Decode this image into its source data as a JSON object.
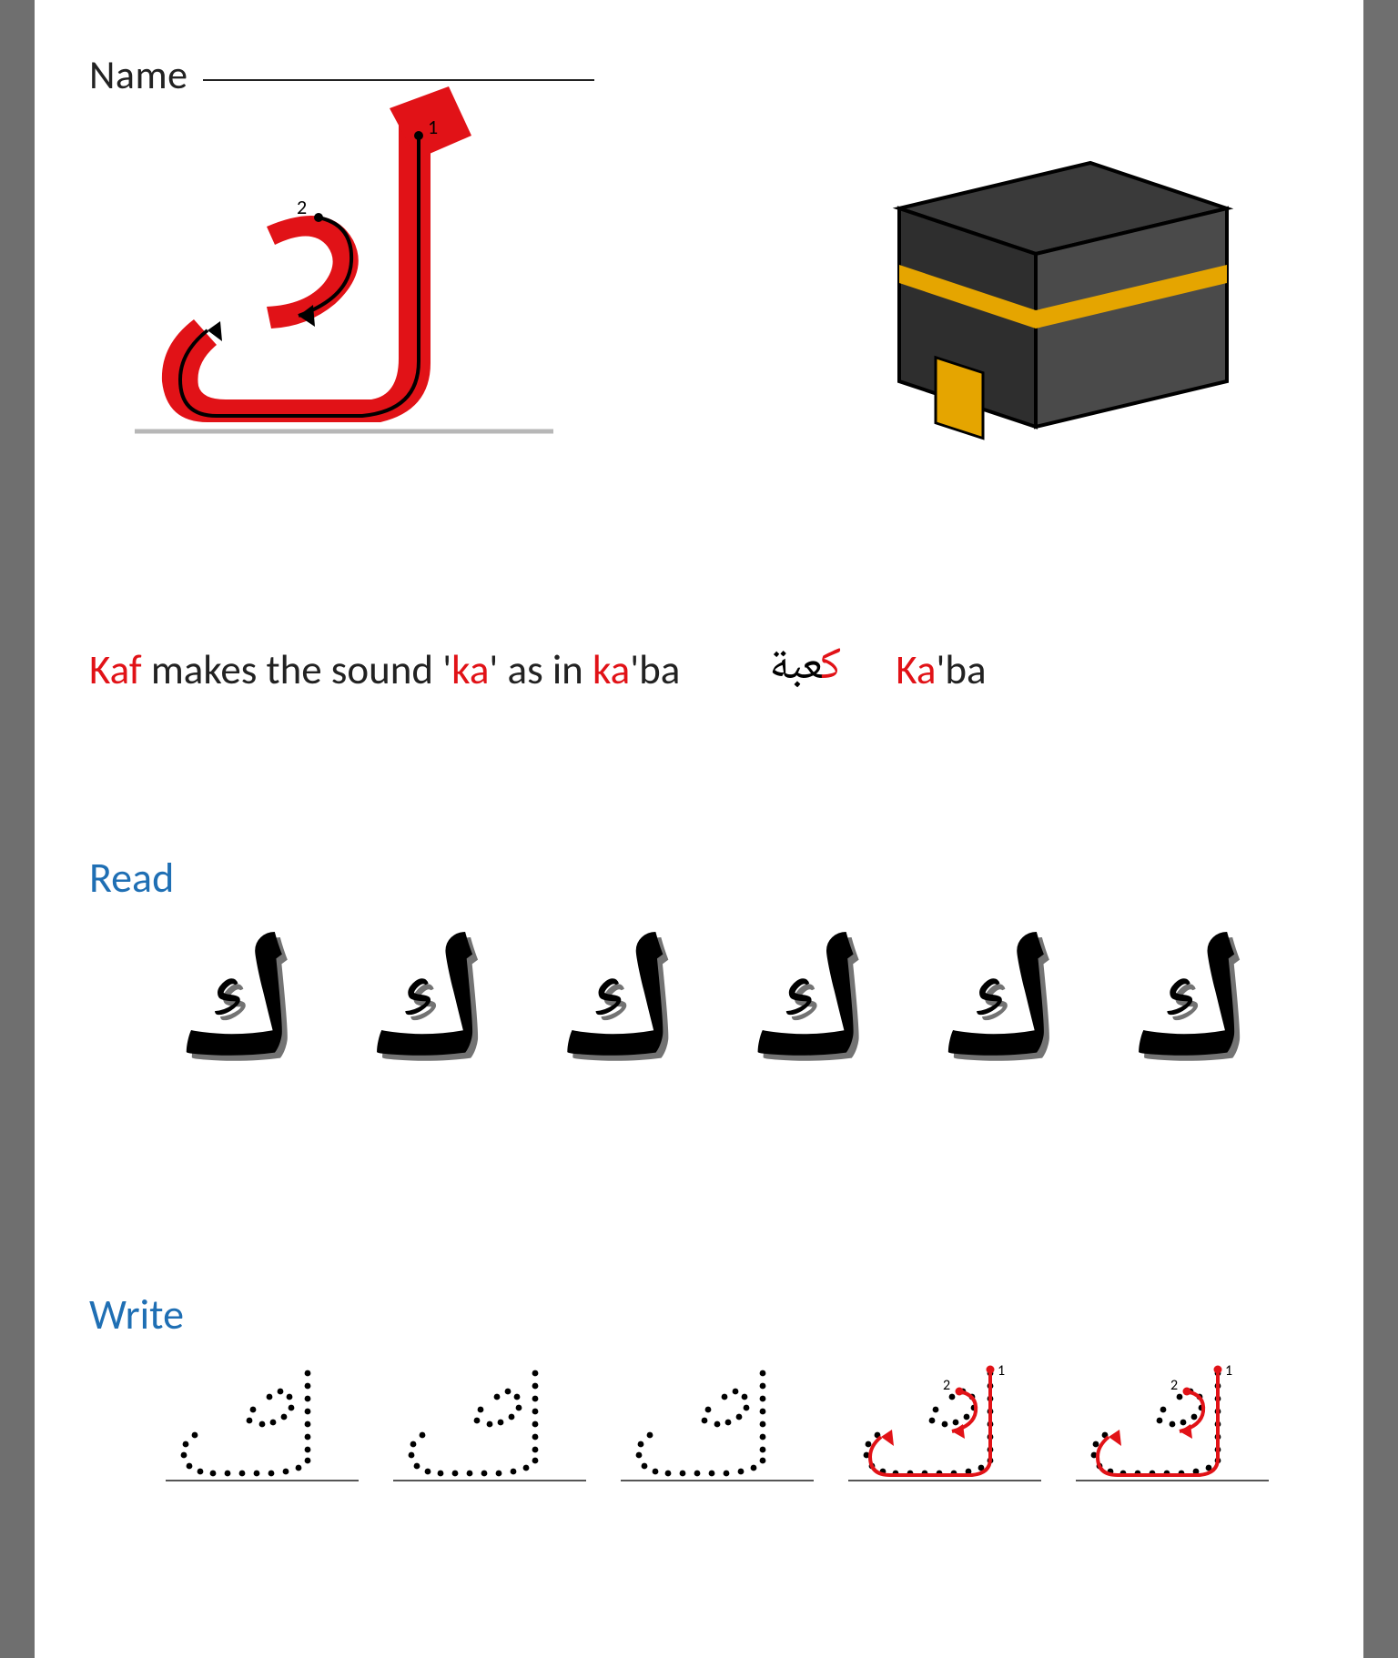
{
  "name_label": "Name",
  "letter": "ك",
  "letter_color": "#e11217",
  "guide_stroke_numbers": [
    "1",
    "2"
  ],
  "kaaba": {
    "top_color": "#3a3a3a",
    "side_color": "#4a4a4a",
    "front_color": "#2e2e2e",
    "band_color": "#e5a500",
    "door_color": "#e5a500",
    "outline": "#000000"
  },
  "sentence": {
    "parts": [
      {
        "text": "Kaf",
        "red": true
      },
      {
        "text": " makes the sound '",
        "red": false
      },
      {
        "text": "ka",
        "red": true
      },
      {
        "text": "' as in ",
        "red": false
      },
      {
        "text": "ka",
        "red": true
      },
      {
        "text": "'ba",
        "red": false
      }
    ],
    "arabic_highlight": "ك",
    "arabic_rest": "عبة",
    "translit_highlight": "Ka",
    "translit_rest": "'ba"
  },
  "read": {
    "heading": "Read",
    "heading_color": "#1f6fb4",
    "glyph": "ك",
    "count": 6,
    "shadow": "#000000"
  },
  "write": {
    "heading": "Write",
    "heading_color": "#1f6fb4",
    "cells": 5,
    "guided_cells": [
      0,
      1
    ],
    "dot_color": "#000000",
    "guide_color": "#e11217",
    "baseline_color": "#555555",
    "stroke_numbers": [
      "1",
      "2"
    ]
  }
}
